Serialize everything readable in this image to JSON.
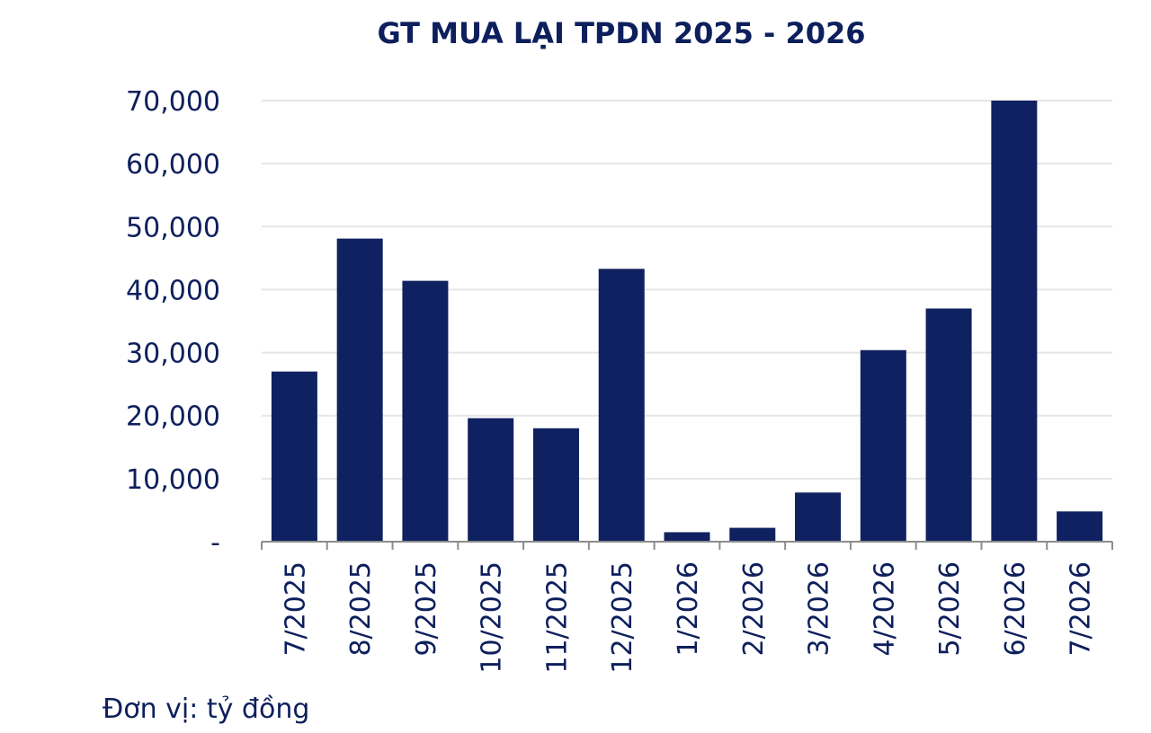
{
  "chart_data": {
    "type": "bar",
    "title": "GT MUA LẠI TPDN 2025 - 2026",
    "categories": [
      "7/2025",
      "8/2025",
      "9/2025",
      "10/2025",
      "11/2025",
      "12/2025",
      "1/2026",
      "2/2026",
      "3/2026",
      "4/2026",
      "5/2026",
      "6/2026",
      "7/2026"
    ],
    "values": [
      27000,
      48100,
      41400,
      19600,
      18000,
      43300,
      1500,
      2200,
      7800,
      30400,
      37000,
      70000,
      4800
    ],
    "y_ticks": [
      {
        "value": 0,
        "label": "-"
      },
      {
        "value": 10000,
        "label": "10,000"
      },
      {
        "value": 20000,
        "label": "20,000"
      },
      {
        "value": 30000,
        "label": "30,000"
      },
      {
        "value": 40000,
        "label": "40,000"
      },
      {
        "value": 50000,
        "label": "50,000"
      },
      {
        "value": 60000,
        "label": "60,000"
      },
      {
        "value": 70000,
        "label": "70,000"
      }
    ],
    "ylim": [
      0,
      70000
    ],
    "grid": true,
    "colors": {
      "bar": "#0f2160",
      "text": "#0d1f5c",
      "grid": "#e6e6e6",
      "axis": "#8c8c8c"
    }
  },
  "unit_note": "Đơn vị: tỷ đồng"
}
